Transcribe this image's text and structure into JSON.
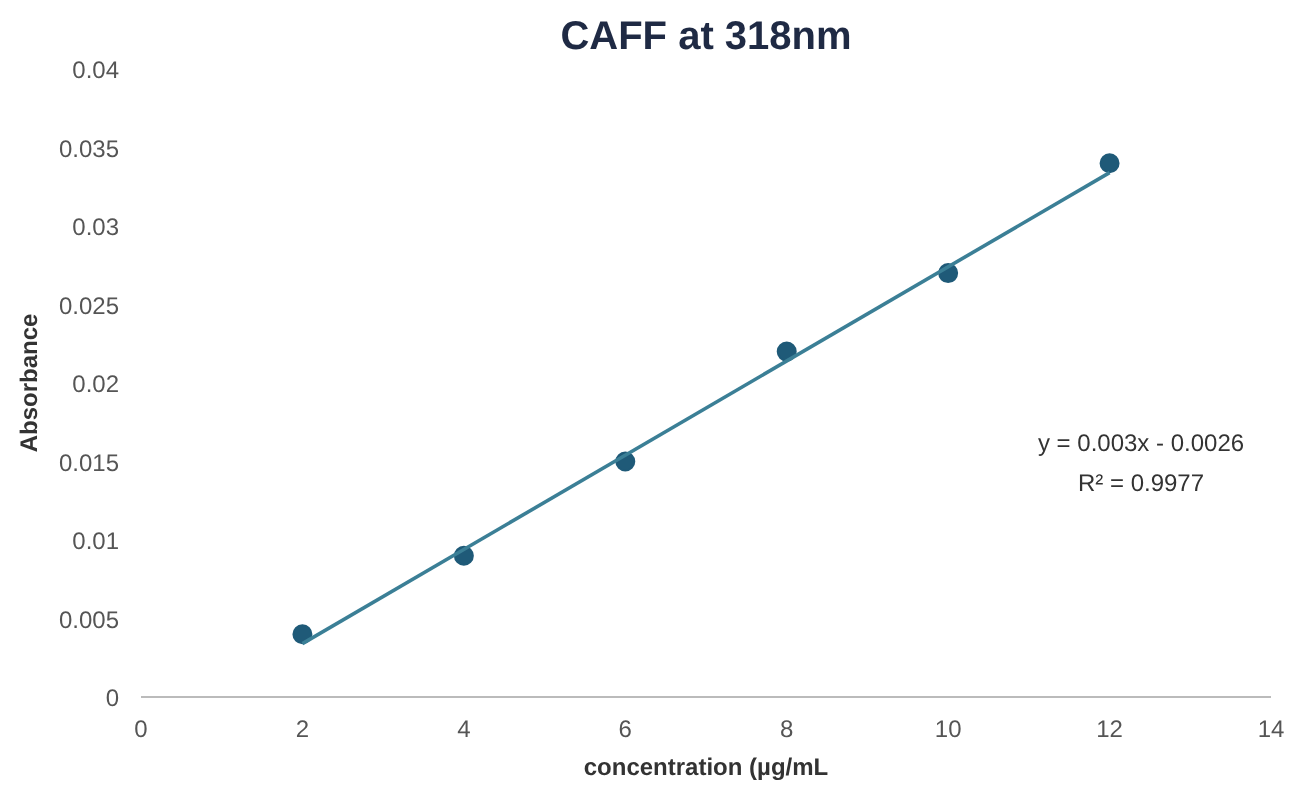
{
  "chart_data": {
    "type": "scatter",
    "title": "CAFF at 318nm",
    "xlabel": "concentration (µg/mL",
    "ylabel": "Absorbance",
    "xlim": [
      0,
      14
    ],
    "xticks": [
      0,
      2,
      4,
      6,
      8,
      10,
      12,
      14
    ],
    "ylim": [
      0,
      0.04
    ],
    "yticks": [
      0,
      0.005,
      0.01,
      0.015,
      0.02,
      0.025,
      0.03,
      0.035,
      0.04
    ],
    "grid": false,
    "series": [
      {
        "color": "#1f5a78",
        "marker": "circle",
        "x": [
          2,
          4,
          6,
          8,
          10,
          12
        ],
        "values": [
          0.004,
          0.009,
          0.015,
          0.022,
          0.027,
          0.034
        ]
      },
      {
        "type": "line",
        "color": "#3b7f96",
        "marker": "none",
        "line_style": "solid",
        "x": [
          2,
          12
        ],
        "values": [
          0.0034,
          0.0334
        ]
      }
    ],
    "annotations": [
      "y = 0.003x - 0.0026",
      "R² = 0.9977"
    ]
  }
}
